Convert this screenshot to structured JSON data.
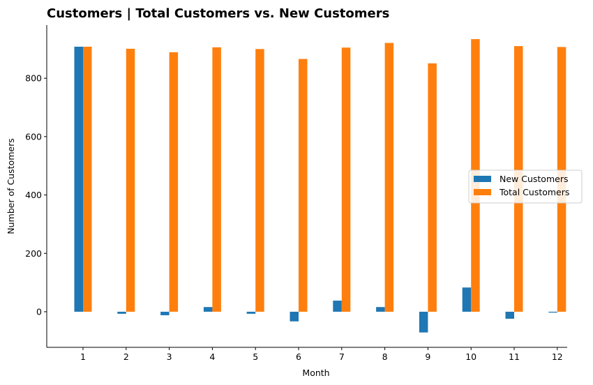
{
  "chart_data": {
    "type": "bar",
    "title": "Customers | Total Customers vs. New Customers",
    "xlabel": "Month",
    "ylabel": "Number of Customers",
    "categories": [
      "1",
      "2",
      "3",
      "4",
      "5",
      "6",
      "7",
      "8",
      "9",
      "10",
      "11",
      "12"
    ],
    "series": [
      {
        "name": "New Customers",
        "color": "#1f77b4",
        "values": [
          908,
          -7,
          -12,
          16,
          -7,
          -33,
          38,
          16,
          -71,
          83,
          -24,
          -3
        ]
      },
      {
        "name": "Total Customers",
        "color": "#ff7f0e",
        "values": [
          908,
          901,
          889,
          906,
          900,
          866,
          905,
          921,
          851,
          934,
          910,
          907
        ]
      }
    ],
    "yticks": [
      0,
      200,
      400,
      600,
      800
    ],
    "ylim": [
      -122,
      982
    ],
    "legend_position": "center-right",
    "grid": false
  }
}
